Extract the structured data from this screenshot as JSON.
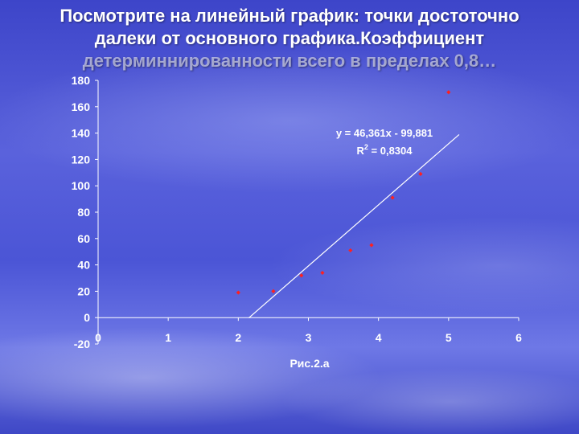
{
  "slide": {
    "title_lines": [
      "Посмотрите на линейный график: точки достоточно",
      "далеки от основного графика.Коэффициент",
      "детерминнированности всего в пределах 0,8…"
    ],
    "caption": "Рис.2.а"
  },
  "chart_data": {
    "type": "scatter",
    "title": "",
    "xlabel": "",
    "ylabel": "",
    "xlim": [
      0,
      6
    ],
    "ylim": [
      -20,
      180
    ],
    "x_ticks": [
      0,
      1,
      2,
      3,
      4,
      5,
      6
    ],
    "y_ticks": [
      -20,
      0,
      20,
      40,
      60,
      80,
      100,
      120,
      140,
      160,
      180
    ],
    "grid": false,
    "series": [
      {
        "points": [
          [
            2.0,
            19
          ],
          [
            2.5,
            20
          ],
          [
            2.9,
            32
          ],
          [
            3.2,
            34
          ],
          [
            3.6,
            51
          ],
          [
            3.9,
            55
          ],
          [
            4.2,
            91
          ],
          [
            4.6,
            109
          ],
          [
            5.0,
            171
          ]
        ],
        "color": "#ff2020"
      }
    ],
    "trendline": {
      "slope": 46.361,
      "intercept": -99.881,
      "x_range": [
        2.15,
        5.15
      ],
      "color": "#ffffff",
      "equation_label": "y = 46,361x - 99,881",
      "r2_label_prefix": "R",
      "r2_label_sup": "2",
      "r2_label_suffix": " = 0,8304"
    }
  },
  "colors": {
    "point": "#ff2020",
    "text": "#ffffff",
    "axis": "#ffffff"
  }
}
